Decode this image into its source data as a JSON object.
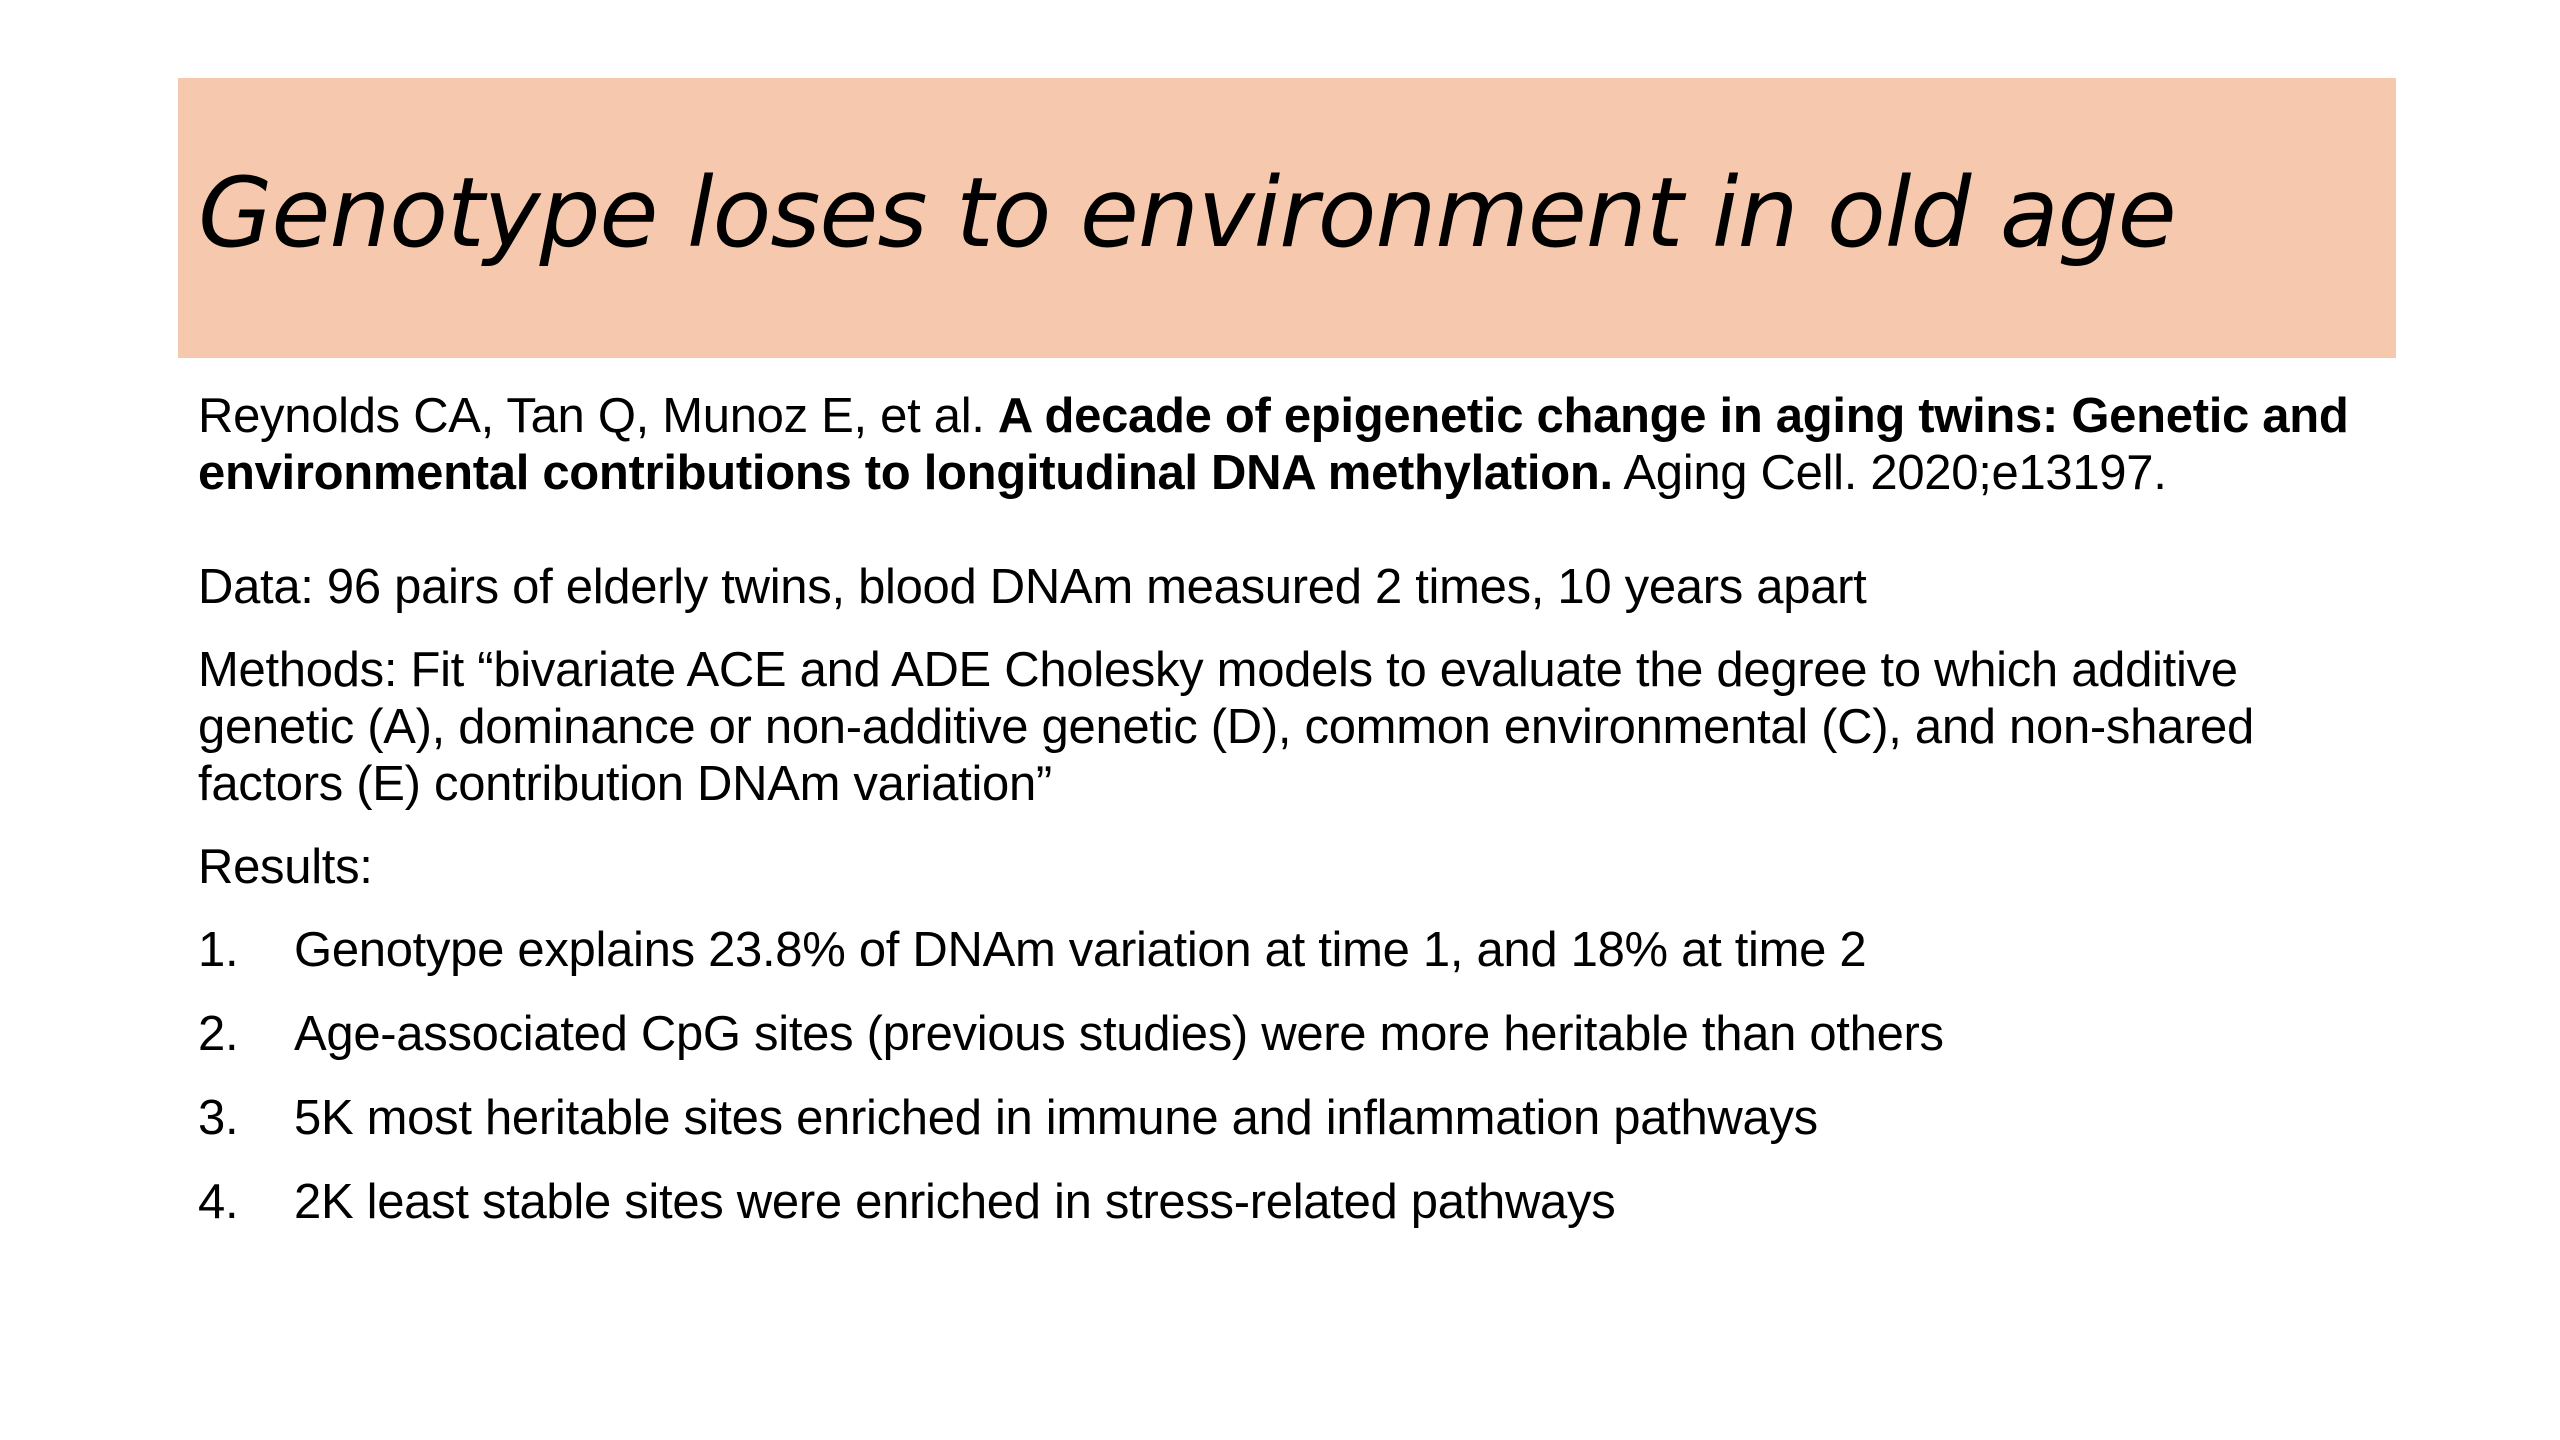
{
  "slide": {
    "title": "Genotype loses to environment in old age",
    "accent_color": "#f6c9ae",
    "citation": {
      "authors": "Reynolds CA, Tan Q, Munoz E, et al. ",
      "paper_title": "A decade of epigenetic change in aging twins: Genetic and environmental contributions to longitudinal DNA methylation.",
      "journal": " Aging Cell. 2020;e13197."
    },
    "data_text": "Data: 96 pairs of elderly twins, blood DNAm measured 2 times, 10 years apart",
    "methods_text": "Methods: Fit “bivariate ACE and ADE Cholesky models to evaluate the degree to which additive genetic (A), dominance or non-additive genetic (D), common environmental (C), and non-shared factors (E) contribution DNAm variation”",
    "results_label": "Results:",
    "results": [
      {
        "number": "1.",
        "text": "Genotype explains 23.8% of DNAm variation at time 1, and 18% at time 2"
      },
      {
        "number": "2.",
        "text": "Age-associated CpG sites (previous studies) were more heritable than others"
      },
      {
        "number": "3.",
        "text": "5K most heritable sites enriched in immune and inflammation pathways"
      },
      {
        "number": "4.",
        "text": "2K least stable sites were enriched in stress-related pathways"
      }
    ]
  }
}
